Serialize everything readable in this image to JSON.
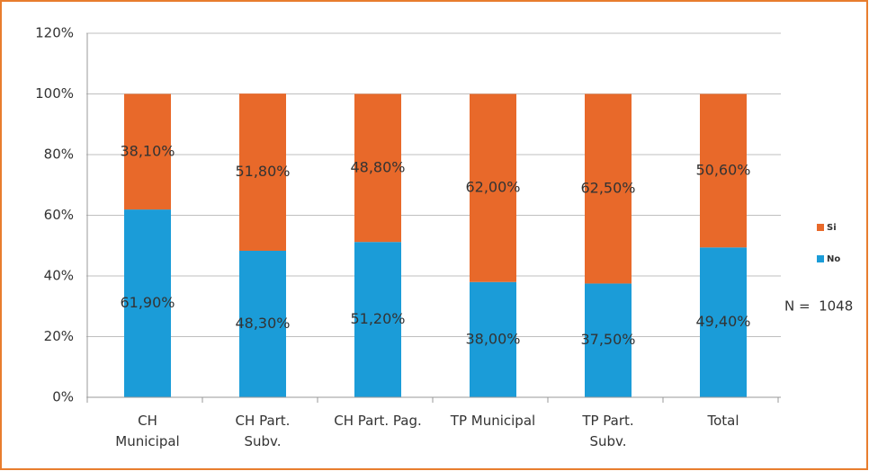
{
  "chart_data": {
    "type": "stacked_bar",
    "categories": [
      "CH\nMunicipal",
      "CH Part.\nSubv.",
      "CH Part. Pag.",
      "TP Municipal",
      "TP Part.\nSubv.",
      "Total"
    ],
    "series": [
      {
        "name": "No",
        "color": "#1b9cd8",
        "values": [
          61.9,
          48.3,
          51.2,
          38.0,
          37.5,
          49.4
        ],
        "value_labels": [
          "61,90%",
          "48,30%",
          "51,20%",
          "38,00%",
          "37,50%",
          "49,40%"
        ]
      },
      {
        "name": "Si",
        "color": "#e8692a",
        "values": [
          38.1,
          51.8,
          48.8,
          62.0,
          62.5,
          50.6
        ],
        "value_labels": [
          "38,10%",
          "51,80%",
          "48,80%",
          "62,00%",
          "62,50%",
          "50,60%"
        ]
      }
    ],
    "ylim": [
      0,
      120
    ],
    "yticks": [
      {
        "value": 0,
        "label": "0%"
      },
      {
        "value": 20,
        "label": "20%"
      },
      {
        "value": 40,
        "label": "40%"
      },
      {
        "value": 60,
        "label": "60%"
      },
      {
        "value": 80,
        "label": "80%"
      },
      {
        "value": 100,
        "label": "100%"
      },
      {
        "value": 120,
        "label": "120%"
      }
    ],
    "grid": true,
    "legend": "right",
    "annotation": "N =  1048"
  }
}
